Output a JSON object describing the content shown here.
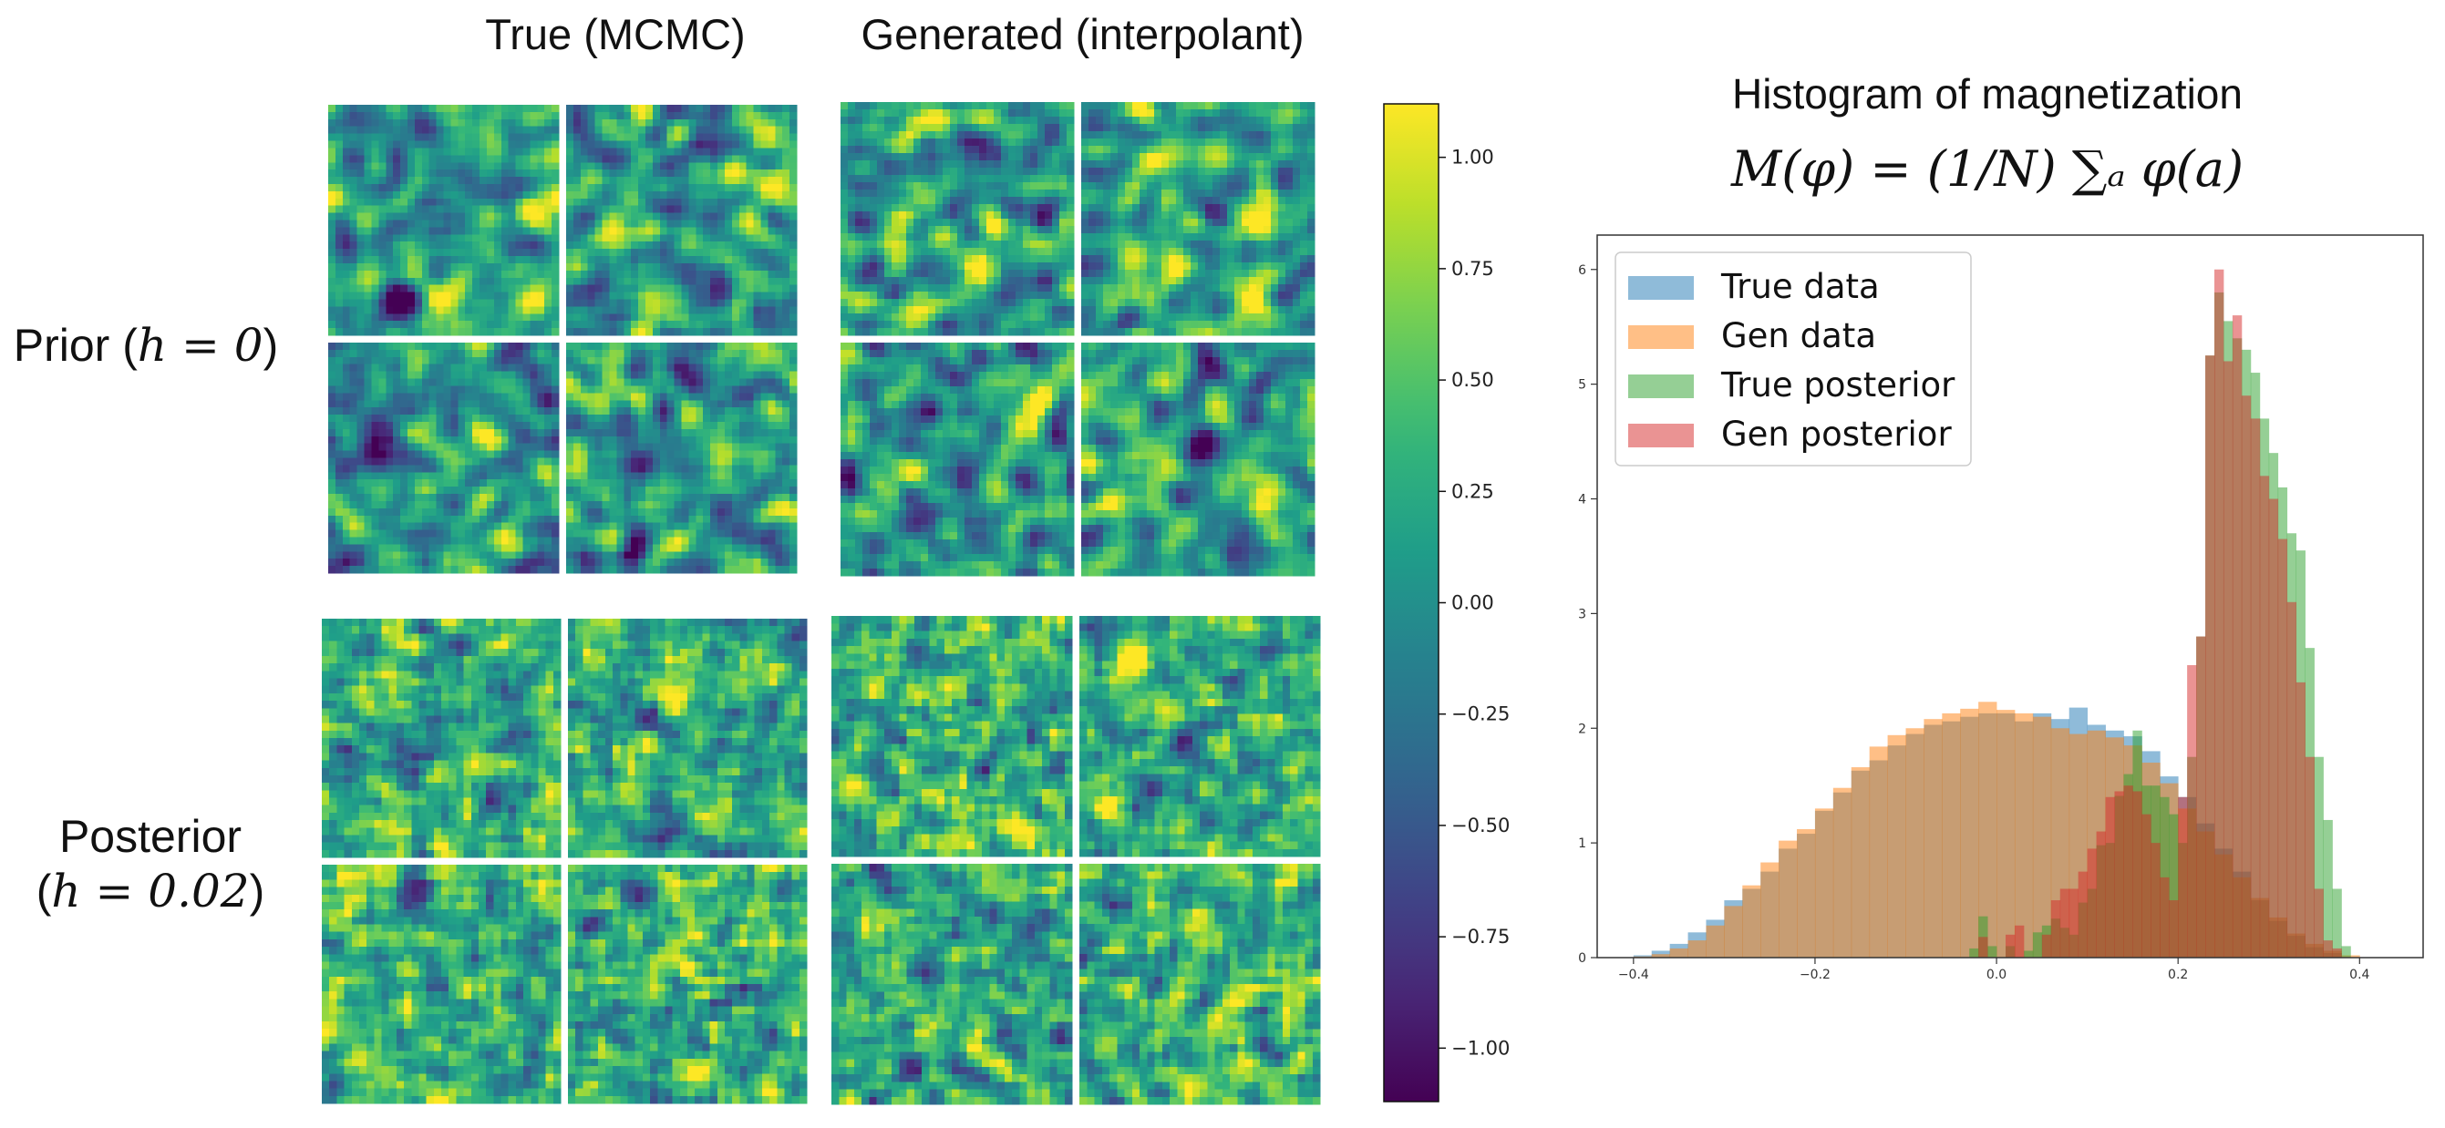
{
  "panels": {
    "col_titles": [
      "True (MCMC)",
      "Generated (interpolant)"
    ],
    "row_labels": {
      "prior": {
        "text": "Prior (",
        "math": "h = 0",
        "close": ")"
      },
      "posterior": {
        "line1": "Posterior",
        "open": "(",
        "math": "h = 0.02",
        "close": ")"
      }
    },
    "field_grid_size": 32,
    "fields_per_block": 4
  },
  "colorbar": {
    "ticks": [
      "1.00",
      "0.75",
      "0.50",
      "0.25",
      "0.00",
      "−0.25",
      "−0.50",
      "−0.75",
      "−1.00"
    ],
    "tick_values": [
      1.0,
      0.75,
      0.5,
      0.25,
      0.0,
      -0.25,
      -0.5,
      -0.75,
      -1.0
    ],
    "range": [
      -1.12,
      1.12
    ],
    "colormap": [
      "#440154",
      "#482878",
      "#3e4989",
      "#31688e",
      "#26828e",
      "#1f9e89",
      "#35b779",
      "#6ece58",
      "#b5de2b",
      "#fde725"
    ]
  },
  "histogram": {
    "title": "Histogram of magnetization",
    "formula": "M(φ) = (1/N) ∑ₐ φ(a)"
  },
  "chart_data": {
    "type": "histogram",
    "title": "Histogram of magnetization",
    "xlim": [
      -0.44,
      0.47
    ],
    "ylim": [
      0,
      6.3
    ],
    "xticks": [
      -0.4,
      -0.2,
      0.0,
      0.2,
      0.4
    ],
    "xtick_labels": [
      "−0.4",
      "−0.2",
      "0.0",
      "0.2",
      "0.4"
    ],
    "yticks": [
      0,
      1,
      2,
      3,
      4,
      5,
      6
    ],
    "ytick_labels": [
      "0",
      "1",
      "2",
      "3",
      "4",
      "5",
      "6"
    ],
    "legend_position": "top-left",
    "series": [
      {
        "name": "True data",
        "color": "#1f77b4",
        "bins": [
          [
            -0.4,
            0.02
          ],
          [
            -0.38,
            0.06
          ],
          [
            -0.36,
            0.12
          ],
          [
            -0.34,
            0.22
          ],
          [
            -0.32,
            0.33
          ],
          [
            -0.3,
            0.5
          ],
          [
            -0.28,
            0.6
          ],
          [
            -0.26,
            0.75
          ],
          [
            -0.24,
            0.95
          ],
          [
            -0.22,
            1.08
          ],
          [
            -0.2,
            1.28
          ],
          [
            -0.18,
            1.44
          ],
          [
            -0.16,
            1.63
          ],
          [
            -0.14,
            1.72
          ],
          [
            -0.12,
            1.85
          ],
          [
            -0.1,
            1.95
          ],
          [
            -0.08,
            2.03
          ],
          [
            -0.06,
            2.06
          ],
          [
            -0.04,
            2.1
          ],
          [
            -0.02,
            2.13
          ],
          [
            0.0,
            2.13
          ],
          [
            0.02,
            2.06
          ],
          [
            0.04,
            2.13
          ],
          [
            0.06,
            2.08
          ],
          [
            0.08,
            2.18
          ],
          [
            0.1,
            2.03
          ],
          [
            0.12,
            1.98
          ],
          [
            0.14,
            1.93
          ],
          [
            0.16,
            1.8
          ],
          [
            0.18,
            1.58
          ],
          [
            0.2,
            1.4
          ],
          [
            0.22,
            1.17
          ],
          [
            0.24,
            0.95
          ],
          [
            0.26,
            0.75
          ],
          [
            0.28,
            0.5
          ],
          [
            0.3,
            0.32
          ],
          [
            0.32,
            0.19
          ],
          [
            0.34,
            0.09
          ],
          [
            0.36,
            0.04
          ]
        ]
      },
      {
        "name": "Gen data",
        "color": "#ff7f0e",
        "bins": [
          [
            -0.4,
            0.01
          ],
          [
            -0.38,
            0.03
          ],
          [
            -0.36,
            0.08
          ],
          [
            -0.34,
            0.15
          ],
          [
            -0.32,
            0.28
          ],
          [
            -0.3,
            0.45
          ],
          [
            -0.28,
            0.63
          ],
          [
            -0.26,
            0.83
          ],
          [
            -0.24,
            1.02
          ],
          [
            -0.22,
            1.12
          ],
          [
            -0.2,
            1.3
          ],
          [
            -0.18,
            1.48
          ],
          [
            -0.16,
            1.66
          ],
          [
            -0.14,
            1.84
          ],
          [
            -0.12,
            1.94
          ],
          [
            -0.1,
            2.0
          ],
          [
            -0.08,
            2.08
          ],
          [
            -0.06,
            2.13
          ],
          [
            -0.04,
            2.17
          ],
          [
            -0.02,
            2.23
          ],
          [
            0.0,
            2.16
          ],
          [
            0.02,
            2.13
          ],
          [
            0.04,
            2.1
          ],
          [
            0.06,
            2.0
          ],
          [
            0.08,
            1.95
          ],
          [
            0.1,
            1.98
          ],
          [
            0.12,
            1.92
          ],
          [
            0.14,
            1.85
          ],
          [
            0.16,
            1.7
          ],
          [
            0.18,
            1.52
          ],
          [
            0.2,
            1.3
          ],
          [
            0.22,
            1.1
          ],
          [
            0.24,
            0.9
          ],
          [
            0.26,
            0.7
          ],
          [
            0.28,
            0.52
          ],
          [
            0.3,
            0.35
          ],
          [
            0.32,
            0.21
          ],
          [
            0.34,
            0.12
          ],
          [
            0.36,
            0.06
          ],
          [
            0.38,
            0.02
          ]
        ]
      },
      {
        "name": "True posterior",
        "color": "#2ca02c",
        "bins": [
          [
            -0.03,
            0.08
          ],
          [
            -0.02,
            0.36
          ],
          [
            -0.01,
            0.1
          ],
          [
            0.0,
            0.0
          ],
          [
            0.01,
            0.1
          ],
          [
            0.02,
            0.0
          ],
          [
            0.03,
            0.06
          ],
          [
            0.04,
            0.22
          ],
          [
            0.05,
            0.28
          ],
          [
            0.06,
            0.34
          ],
          [
            0.07,
            0.26
          ],
          [
            0.08,
            0.2
          ],
          [
            0.09,
            0.48
          ],
          [
            0.1,
            0.6
          ],
          [
            0.11,
            0.98
          ],
          [
            0.12,
            1.0
          ],
          [
            0.13,
            1.41
          ],
          [
            0.14,
            1.6
          ],
          [
            0.15,
            1.98
          ],
          [
            0.16,
            1.5
          ],
          [
            0.17,
            1.5
          ],
          [
            0.18,
            1.4
          ],
          [
            0.19,
            1.25
          ],
          [
            0.2,
            1.0
          ],
          [
            0.21,
            1.75
          ],
          [
            0.22,
            2.8
          ],
          [
            0.23,
            5.25
          ],
          [
            0.24,
            5.8
          ],
          [
            0.25,
            5.55
          ],
          [
            0.26,
            5.4
          ],
          [
            0.27,
            5.3
          ],
          [
            0.28,
            5.1
          ],
          [
            0.29,
            4.7
          ],
          [
            0.3,
            4.4
          ],
          [
            0.31,
            4.1
          ],
          [
            0.32,
            3.7
          ],
          [
            0.33,
            3.55
          ],
          [
            0.34,
            2.7
          ],
          [
            0.35,
            1.75
          ],
          [
            0.36,
            1.2
          ],
          [
            0.37,
            0.6
          ],
          [
            0.38,
            0.1
          ]
        ]
      },
      {
        "name": "Gen posterior",
        "color": "#d62728",
        "bins": [
          [
            -0.03,
            0.0
          ],
          [
            -0.02,
            0.18
          ],
          [
            -0.01,
            0.0
          ],
          [
            0.0,
            0.0
          ],
          [
            0.01,
            0.2
          ],
          [
            0.02,
            0.28
          ],
          [
            0.03,
            0.0
          ],
          [
            0.04,
            0.0
          ],
          [
            0.05,
            0.2
          ],
          [
            0.06,
            0.5
          ],
          [
            0.07,
            0.6
          ],
          [
            0.08,
            0.6
          ],
          [
            0.09,
            0.75
          ],
          [
            0.1,
            0.95
          ],
          [
            0.11,
            1.1
          ],
          [
            0.12,
            1.4
          ],
          [
            0.13,
            1.45
          ],
          [
            0.14,
            1.5
          ],
          [
            0.15,
            1.45
          ],
          [
            0.16,
            1.25
          ],
          [
            0.17,
            1.0
          ],
          [
            0.18,
            0.7
          ],
          [
            0.19,
            0.5
          ],
          [
            0.2,
            1.4
          ],
          [
            0.21,
            2.55
          ],
          [
            0.22,
            2.8
          ],
          [
            0.23,
            5.25
          ],
          [
            0.24,
            6.0
          ],
          [
            0.25,
            5.2
          ],
          [
            0.26,
            5.6
          ],
          [
            0.27,
            4.9
          ],
          [
            0.28,
            4.7
          ],
          [
            0.29,
            4.2
          ],
          [
            0.3,
            4.0
          ],
          [
            0.31,
            3.65
          ],
          [
            0.32,
            3.1
          ],
          [
            0.33,
            2.4
          ],
          [
            0.34,
            1.75
          ],
          [
            0.35,
            0.6
          ],
          [
            0.36,
            0.15
          ],
          [
            0.37,
            0.08
          ]
        ]
      }
    ]
  }
}
